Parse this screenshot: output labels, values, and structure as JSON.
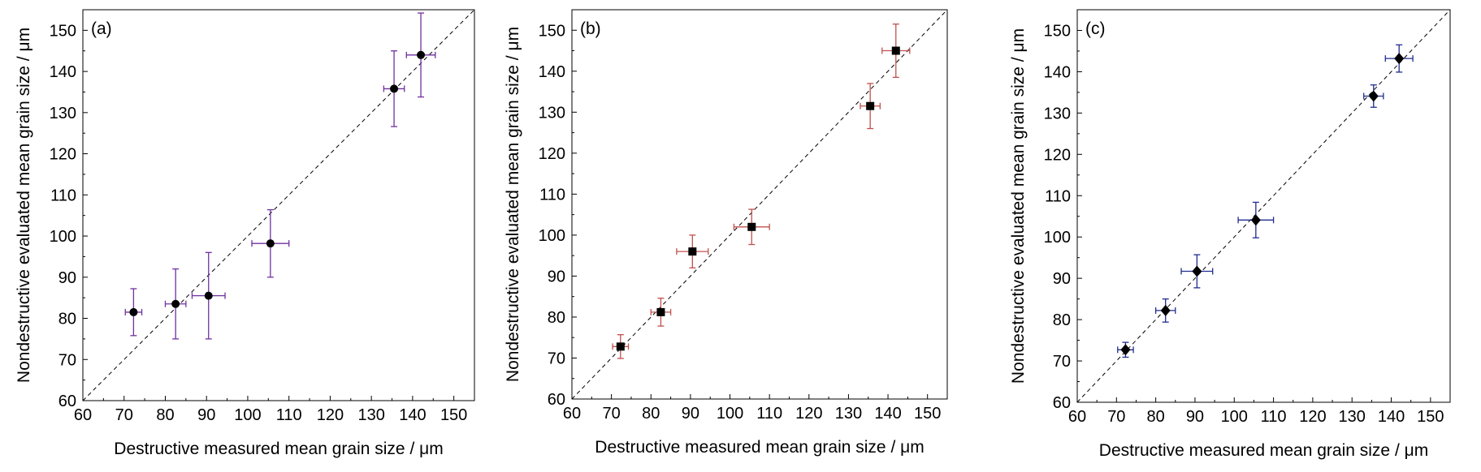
{
  "chart_data": [
    {
      "type": "scatter",
      "panel_label": "(a)",
      "xlabel": "Destructive measured mean grain size / μm",
      "ylabel": "Nondestructive evaluated mean grain size / μm",
      "xlim": [
        60,
        155
      ],
      "ylim": [
        60,
        155
      ],
      "xticks": [
        60,
        70,
        80,
        90,
        100,
        110,
        120,
        130,
        140,
        150
      ],
      "yticks": [
        60,
        70,
        80,
        90,
        100,
        110,
        120,
        130,
        140,
        150
      ],
      "grid": false,
      "reference_line": "y = x (dashed)",
      "marker": "circle",
      "error_bar_color": "#7030a0",
      "points": [
        {
          "x": 72.3,
          "y": 81.5,
          "xerr": 2.0,
          "yerr": 5.7
        },
        {
          "x": 82.5,
          "y": 83.5,
          "xerr": 2.5,
          "yerr": 8.5
        },
        {
          "x": 90.5,
          "y": 85.5,
          "xerr": 4.0,
          "yerr": 10.5
        },
        {
          "x": 105.5,
          "y": 98.2,
          "xerr": 4.5,
          "yerr": 8.2
        },
        {
          "x": 135.5,
          "y": 135.8,
          "xerr": 2.5,
          "yerr": 9.2
        },
        {
          "x": 142.0,
          "y": 144.0,
          "xerr": 3.5,
          "yerr": 10.2
        }
      ]
    },
    {
      "type": "scatter",
      "panel_label": "(b)",
      "xlabel": "Destructive measured mean grain size / μm",
      "ylabel": "Nondestructive evaluated mean grain size / μm",
      "xlim": [
        60,
        155
      ],
      "ylim": [
        60,
        155
      ],
      "xticks": [
        60,
        70,
        80,
        90,
        100,
        110,
        120,
        130,
        140,
        150
      ],
      "yticks": [
        60,
        70,
        80,
        90,
        100,
        110,
        120,
        130,
        140,
        150
      ],
      "grid": false,
      "reference_line": "y = x (dashed)",
      "marker": "square",
      "error_bar_color": "#c0504d",
      "points": [
        {
          "x": 72.3,
          "y": 72.8,
          "xerr": 2.0,
          "yerr": 2.9
        },
        {
          "x": 82.5,
          "y": 81.2,
          "xerr": 2.5,
          "yerr": 3.4
        },
        {
          "x": 90.5,
          "y": 96.0,
          "xerr": 4.0,
          "yerr": 4.0
        },
        {
          "x": 105.5,
          "y": 102.0,
          "xerr": 4.5,
          "yerr": 4.3
        },
        {
          "x": 135.5,
          "y": 131.5,
          "xerr": 2.5,
          "yerr": 5.5
        },
        {
          "x": 142.0,
          "y": 145.0,
          "xerr": 3.5,
          "yerr": 6.5
        }
      ]
    },
    {
      "type": "scatter",
      "panel_label": "(c)",
      "xlabel": "Destructive measured mean grain size / μm",
      "ylabel": "Nondestructive evaluated mean grain size / μm",
      "xlim": [
        60,
        155
      ],
      "ylim": [
        60,
        155
      ],
      "xticks": [
        60,
        70,
        80,
        90,
        100,
        110,
        120,
        130,
        140,
        150
      ],
      "yticks": [
        60,
        70,
        80,
        90,
        100,
        110,
        120,
        130,
        140,
        150
      ],
      "grid": false,
      "reference_line": "y = x (dashed)",
      "marker": "diamond",
      "error_bar_color": "#1f2c8f",
      "points": [
        {
          "x": 72.3,
          "y": 72.7,
          "xerr": 2.0,
          "yerr": 1.8
        },
        {
          "x": 82.5,
          "y": 82.2,
          "xerr": 2.5,
          "yerr": 2.8
        },
        {
          "x": 90.5,
          "y": 91.7,
          "xerr": 4.0,
          "yerr": 4.0
        },
        {
          "x": 105.5,
          "y": 104.1,
          "xerr": 4.5,
          "yerr": 4.3
        },
        {
          "x": 135.5,
          "y": 134.1,
          "xerr": 2.5,
          "yerr": 2.7
        },
        {
          "x": 142.0,
          "y": 143.2,
          "xerr": 3.5,
          "yerr": 3.3
        }
      ]
    }
  ]
}
